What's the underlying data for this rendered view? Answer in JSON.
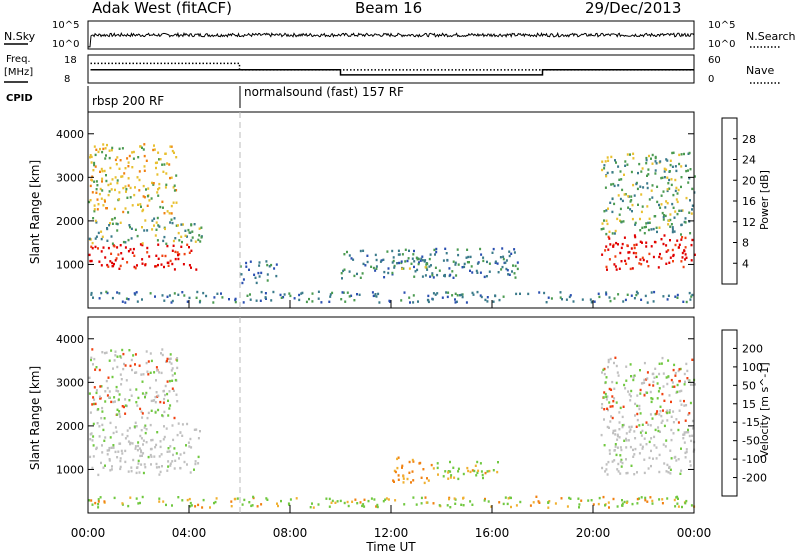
{
  "header": {
    "station": "Adak West (fitACF)",
    "beam": "Beam 16",
    "date": "29/Dec/2013"
  },
  "noise_panel": {
    "left_label": "N.Sky",
    "right_label": "N.Search",
    "left_ticks": [
      "10^5",
      "10^0"
    ],
    "right_ticks": [
      "10^5",
      "10^0"
    ]
  },
  "freq_panel": {
    "left_label_line1": "Freq.",
    "left_label_line2": "[MHz]",
    "right_label": "Nave",
    "left_ticks": [
      "18",
      "8"
    ],
    "right_ticks": [
      "60",
      "0"
    ]
  },
  "cpid": {
    "label": "CPID",
    "segments": [
      {
        "name": "rbsp 200 RF",
        "start_hour": 0,
        "end_hour": 6
      },
      {
        "name": "normalsound (fast) 157 RF",
        "start_hour": 6,
        "end_hour": 24
      }
    ]
  },
  "colors": {
    "power_scale": [
      "#1a1aff",
      "#2a4fb0",
      "#3a7a8a",
      "#4a9a50",
      "#e8c030",
      "#f08010",
      "#f04010",
      "#e00000"
    ],
    "velocity_scale": [
      "#e00000",
      "#f04010",
      "#f08010",
      "#f0b030",
      "#c0c0c0",
      "#70c840",
      "#3a9a60",
      "#2a4fb0",
      "#1a1aa0"
    ],
    "ground_scatter": "#c0c0c0"
  },
  "chart_data": [
    {
      "type": "line",
      "name": "noise",
      "ylabel": "N.Sky",
      "xlim": [
        0,
        24
      ],
      "x": [
        0,
        0.1,
        0.2,
        24
      ],
      "series": [
        {
          "values": [
            0.3,
            2.2,
            2.0,
            2.0
          ]
        }
      ]
    },
    {
      "type": "line",
      "name": "frequency",
      "ylabel": "Freq. [MHz]",
      "xlim": [
        0,
        24
      ],
      "ylim": [
        8,
        18
      ],
      "series": [
        {
          "name": "Freq.",
          "x": [
            0.1,
            6,
            6,
            10,
            10,
            18,
            18,
            24
          ],
          "values": [
            12.7,
            12.7,
            12.7,
            12.7,
            10.9,
            10.9,
            12.7,
            12.7
          ]
        },
        {
          "name": "Nave",
          "x": [
            0.1,
            6,
            6,
            24
          ],
          "values": [
            42,
            42,
            28,
            28
          ]
        }
      ]
    },
    {
      "type": "heatmap",
      "name": "power",
      "ylabel": "Slant Range [km]",
      "colorbar_label": "Power [dB]",
      "colorbar_ticks": [
        "4",
        "8",
        "12",
        "16",
        "20",
        "24",
        "28"
      ],
      "xlim": [
        0,
        24
      ],
      "ylim": [
        0,
        4500
      ],
      "yticks": [
        "1000",
        "2000",
        "3000",
        "4000"
      ],
      "regions": [
        {
          "t0": 0,
          "t1": 4.3,
          "r0": 900,
          "r1": 1500,
          "level": 28
        },
        {
          "t0": 0,
          "t1": 4.6,
          "r0": 1500,
          "r1": 2100,
          "level": 12
        },
        {
          "t0": 0,
          "t1": 3.5,
          "r0": 2200,
          "r1": 3800,
          "level": 16
        },
        {
          "t0": 6,
          "t1": 7.5,
          "r0": 600,
          "r1": 1100,
          "level": 8
        },
        {
          "t0": 10,
          "t1": 17,
          "r0": 700,
          "r1": 1400,
          "level": 8
        },
        {
          "t0": 12,
          "t1": 13.5,
          "r0": 900,
          "r1": 1300,
          "level": 12
        },
        {
          "t0": 20.3,
          "t1": 24,
          "r0": 900,
          "r1": 1700,
          "level": 28
        },
        {
          "t0": 20.3,
          "t1": 24,
          "r0": 1700,
          "r1": 3600,
          "level": 12
        },
        {
          "t0": 0,
          "t1": 24,
          "r0": 150,
          "r1": 400,
          "level": 8
        }
      ]
    },
    {
      "type": "heatmap",
      "name": "velocity",
      "ylabel": "Slant Range [km]",
      "colorbar_label": "Velocity [m s^-1]",
      "colorbar_ticks": [
        "-200",
        "-100",
        "-50",
        "-15",
        "15",
        "50",
        "100",
        "200"
      ],
      "xlim": [
        0,
        24
      ],
      "ylim": [
        0,
        4500
      ],
      "yticks": [
        "1000",
        "2000",
        "3000",
        "4000"
      ],
      "regions": [
        {
          "t0": 0,
          "t1": 4.4,
          "r0": 900,
          "r1": 2100,
          "level": 0
        },
        {
          "t0": 0,
          "t1": 3.5,
          "r0": 2200,
          "r1": 3800,
          "level": 15
        },
        {
          "t0": 12,
          "t1": 13.5,
          "r0": 700,
          "r1": 1300,
          "level": -50
        },
        {
          "t0": 13.5,
          "t1": 16.5,
          "r0": 800,
          "r1": 1200,
          "level": 50
        },
        {
          "t0": 20.3,
          "t1": 24,
          "r0": 900,
          "r1": 2000,
          "level": 0
        },
        {
          "t0": 20.3,
          "t1": 24,
          "r0": 2000,
          "r1": 3600,
          "level": 15
        },
        {
          "t0": 0,
          "t1": 24,
          "r0": 150,
          "r1": 400,
          "level": 50
        }
      ]
    }
  ],
  "time_axis": {
    "label": "Time UT",
    "ticks": [
      "00:00",
      "04:00",
      "08:00",
      "12:00",
      "16:00",
      "20:00",
      "00:00"
    ]
  }
}
